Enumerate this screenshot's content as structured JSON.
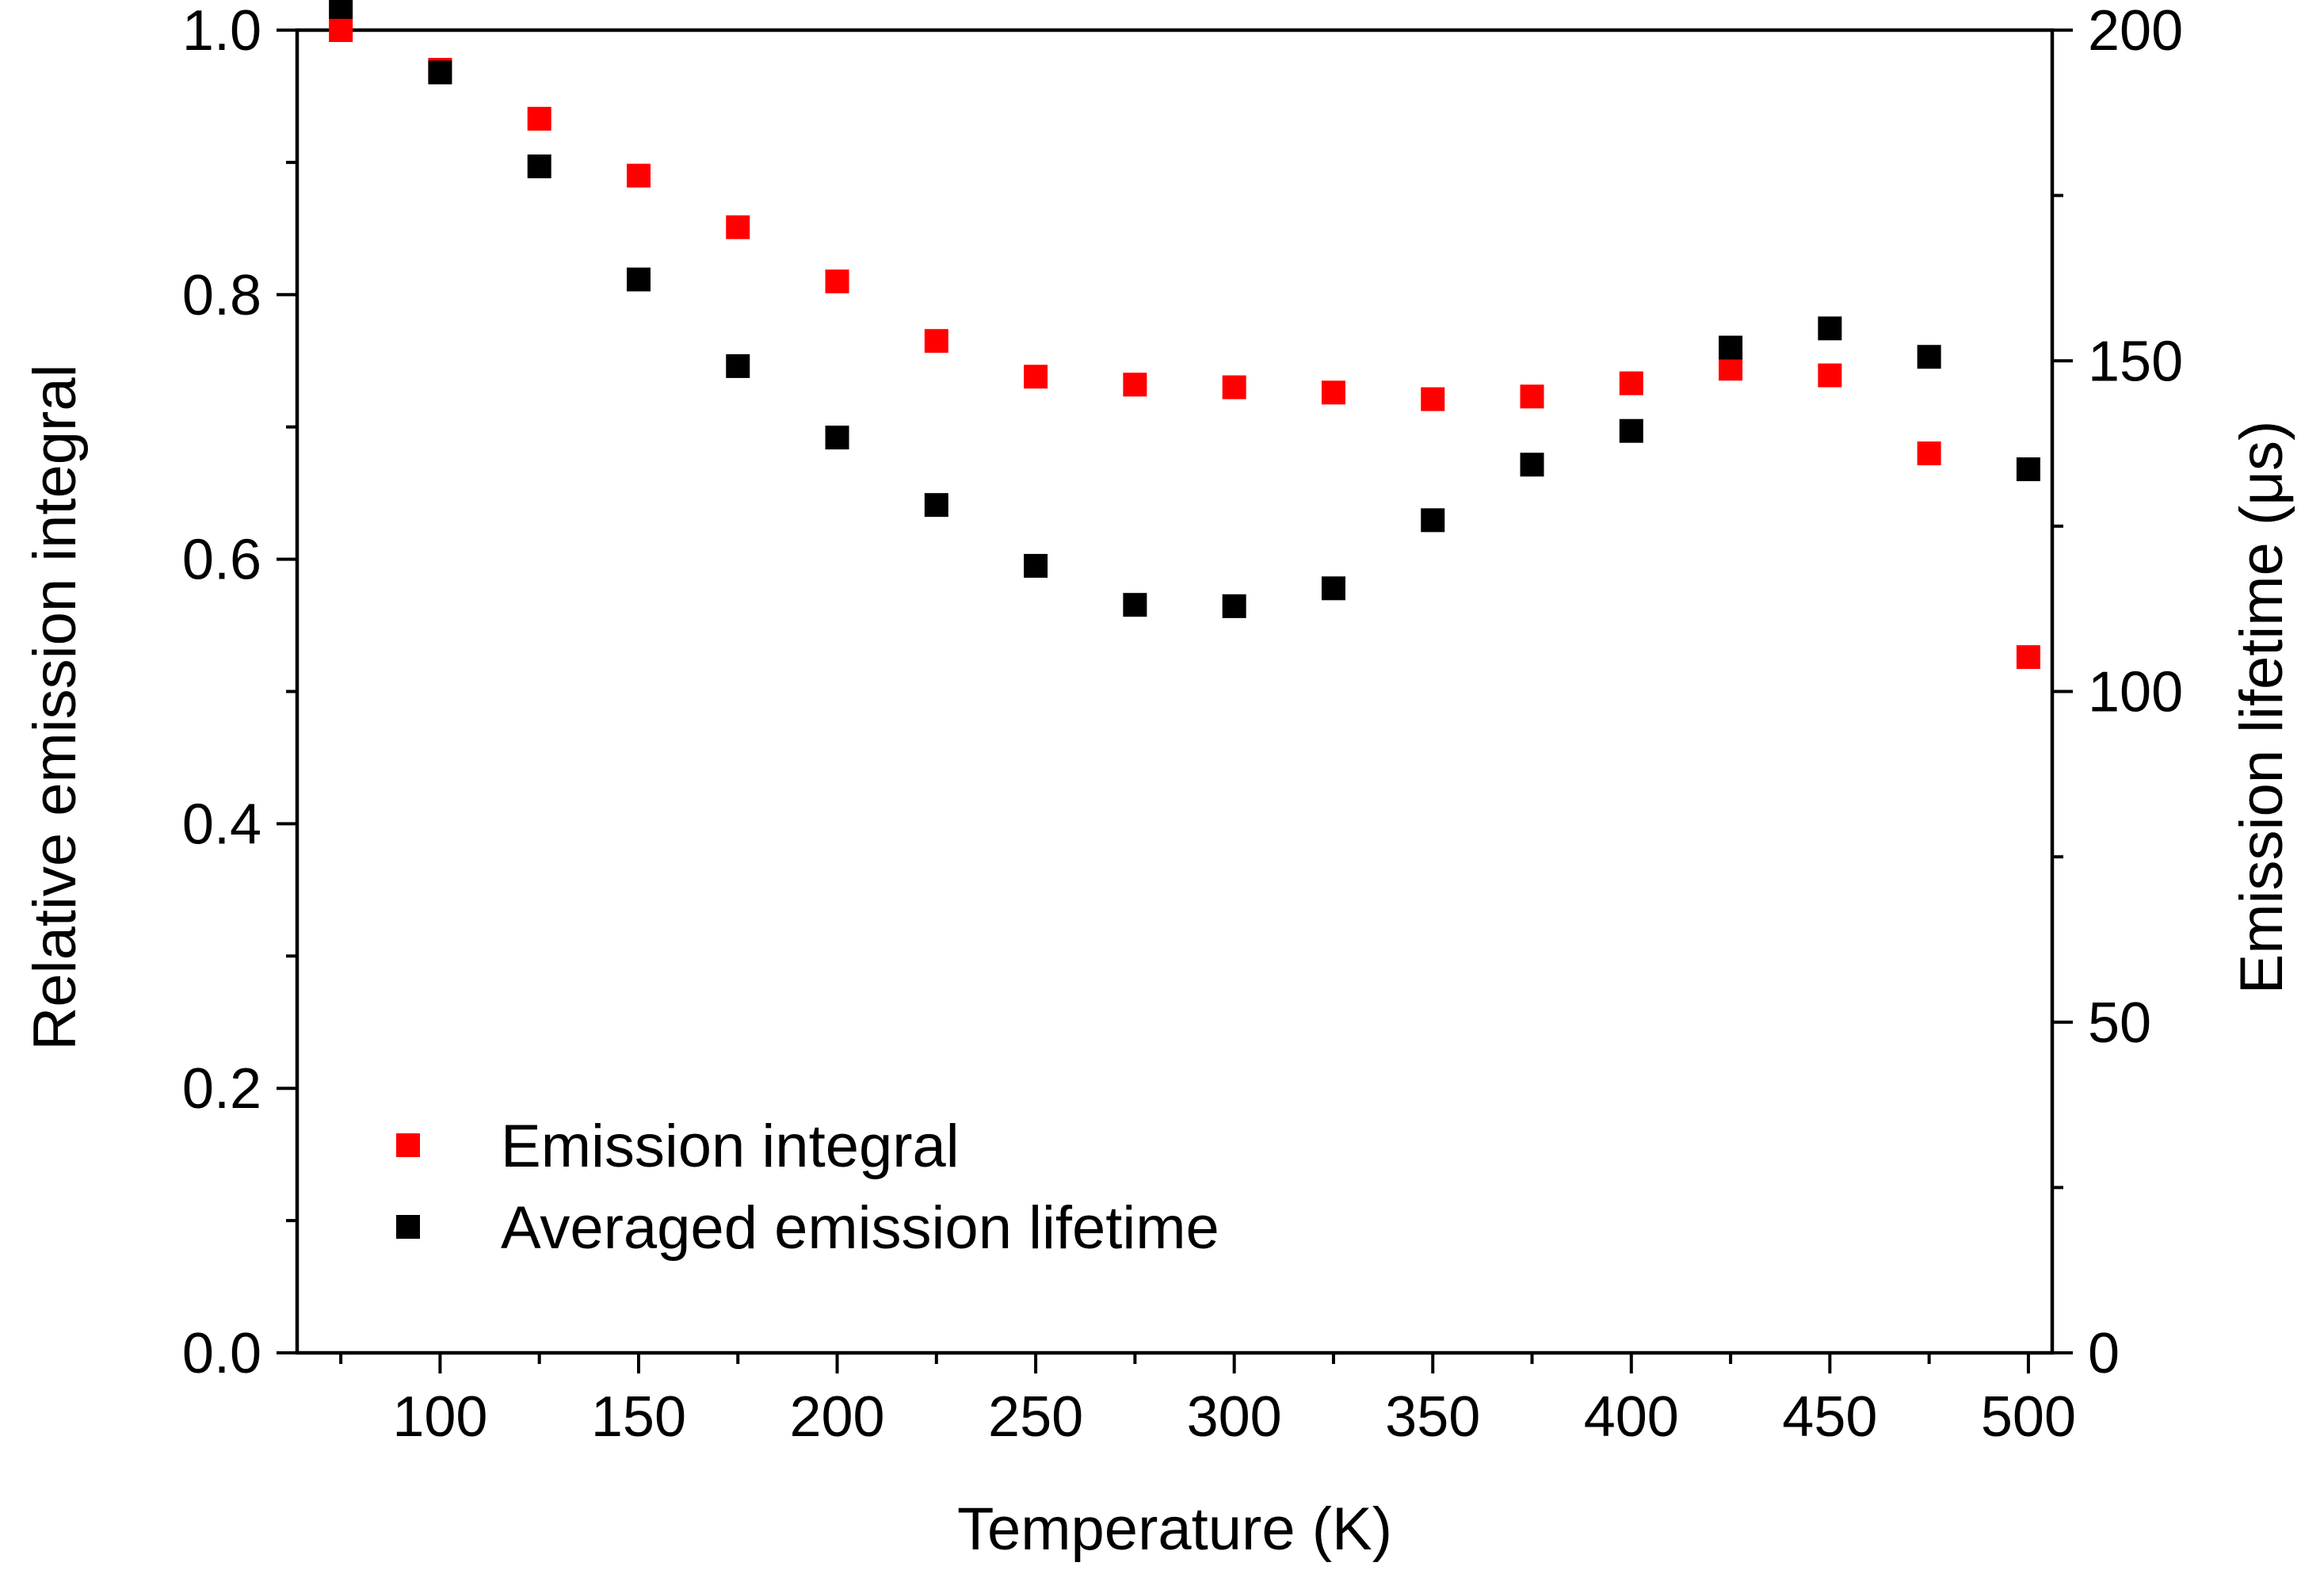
{
  "chart_data": {
    "type": "scatter",
    "xlabel": "Temperature (K)",
    "ylabel_left": "Relative emission integral",
    "ylabel_right": "Emission lifetime (μs)",
    "xlim": [
      64,
      506
    ],
    "ylim_left": [
      0.0,
      1.0
    ],
    "ylim_right": [
      0,
      200
    ],
    "x_ticks": [
      100,
      150,
      200,
      250,
      300,
      350,
      400,
      450,
      500
    ],
    "x_tick_labels": [
      "100",
      "150",
      "200",
      "250",
      "300",
      "350",
      "400",
      "450",
      "500"
    ],
    "y_left_ticks": [
      0.0,
      0.2,
      0.4,
      0.6,
      0.8,
      1.0
    ],
    "y_left_tick_labels": [
      "0.0",
      "0.2",
      "0.4",
      "0.6",
      "0.8",
      "1.0"
    ],
    "y_right_ticks": [
      0,
      50,
      100,
      150,
      200
    ],
    "y_right_tick_labels": [
      "0",
      "50",
      "100",
      "150",
      "200"
    ],
    "grid": false,
    "legend_position": "bottom-left",
    "series": [
      {
        "name": "Emission integral",
        "axis": "left",
        "color": "#ff0000",
        "marker": "square",
        "x": [
          75,
          100,
          125,
          150,
          175,
          200,
          225,
          250,
          275,
          300,
          325,
          350,
          375,
          400,
          425,
          450,
          475,
          500
        ],
        "y": [
          1.0,
          0.97,
          0.933,
          0.89,
          0.851,
          0.81,
          0.765,
          0.738,
          0.732,
          0.73,
          0.726,
          0.721,
          0.723,
          0.733,
          0.744,
          0.739,
          0.68,
          0.526
        ]
      },
      {
        "name": "Averaged emission lifetime",
        "axis": "right",
        "color": "#000000",
        "marker": "square",
        "x": [
          75,
          100,
          125,
          150,
          175,
          200,
          225,
          250,
          275,
          300,
          325,
          350,
          375,
          400,
          425,
          450,
          475,
          500
        ],
        "y": [
          203.5,
          193.6,
          179.4,
          162.3,
          149.2,
          138.4,
          128.2,
          119.0,
          113.1,
          112.9,
          115.6,
          125.9,
          134.3,
          139.4,
          152.0,
          154.9,
          150.6,
          133.6
        ]
      }
    ]
  }
}
